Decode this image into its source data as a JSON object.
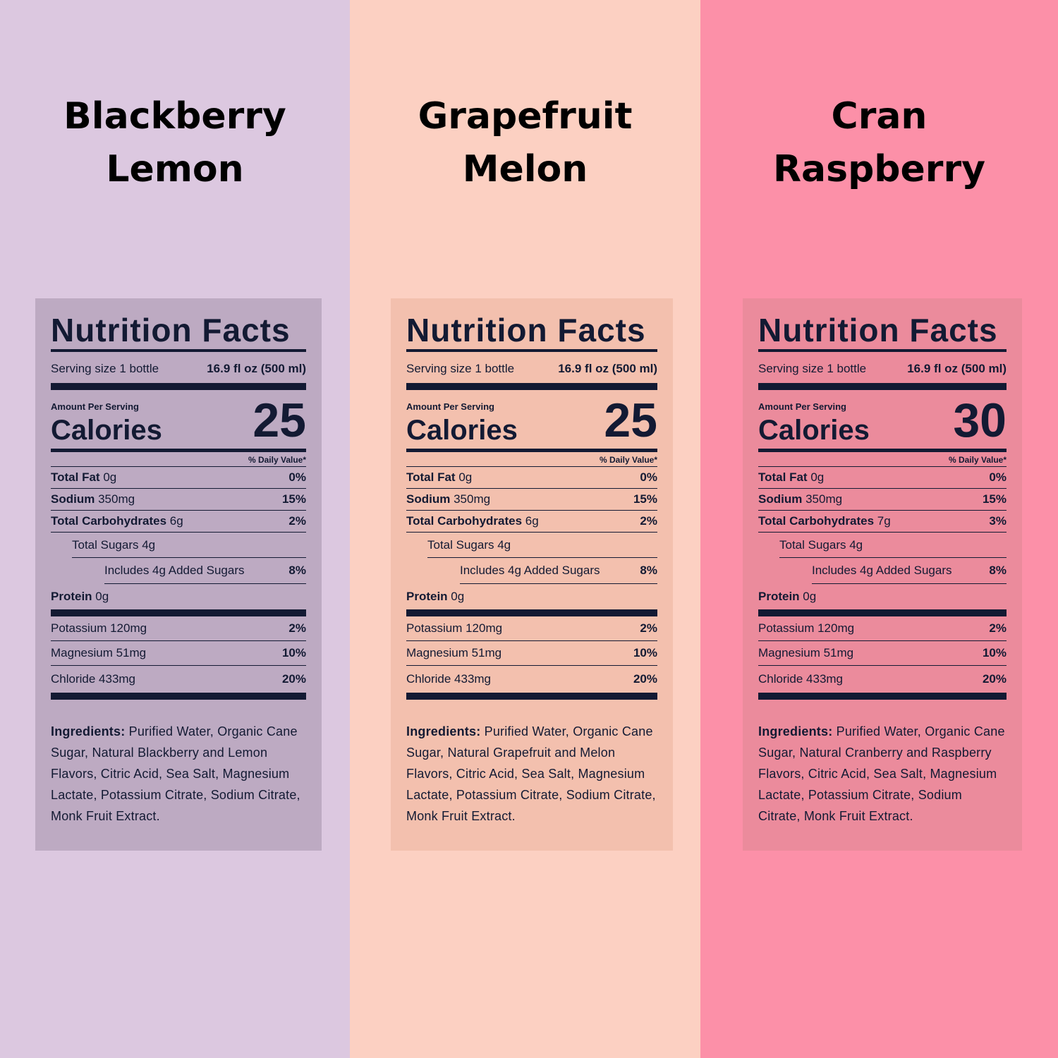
{
  "panels": [
    {
      "title": [
        "Blackberry",
        "Lemon"
      ],
      "label": {
        "heading": "Nutrition Facts",
        "serving_label": "Serving size 1 bottle",
        "serving_size": "16.9 fl oz (500 ml)",
        "amount_per_serving": "Amount Per Serving",
        "calories_label": "Calories",
        "calories": "25",
        "daily_value": "% Daily Value*",
        "nutrients": [
          {
            "name": "Total Fat",
            "amount": "0g",
            "dv": "0%"
          },
          {
            "name": "Sodium",
            "amount": "350mg",
            "dv": "15%"
          },
          {
            "name": "Total Carbohydrates",
            "amount": "6g",
            "dv": "2%"
          },
          {
            "name": "Total Sugars 4g"
          },
          {
            "name": "Includes 4g Added Sugars",
            "dv": "8%"
          },
          {
            "name": "Protein",
            "amount": "0g"
          }
        ],
        "minerals": [
          {
            "name": "Potassium 120mg",
            "dv": "2%"
          },
          {
            "name": "Magnesium 51mg",
            "dv": "10%"
          },
          {
            "name": "Chloride 433mg",
            "dv": "20%"
          }
        ],
        "ingredients": {
          "label": "Ingredients:",
          "text": "Purified Water, Organic Cane Sugar, Natural Blackberry and Lemon Flavors, Citric Acid, Sea Salt, Magnesium Lactate, Potassium Citrate, Sodium Citrate, Monk Fruit Extract."
        }
      }
    },
    {
      "title": [
        "Grapefruit",
        "Melon"
      ],
      "label": {
        "heading": "Nutrition Facts",
        "serving_label": "Serving size 1 bottle",
        "serving_size": "16.9 fl oz (500 ml)",
        "amount_per_serving": "Amount Per Serving",
        "calories_label": "Calories",
        "calories": "25",
        "daily_value": "% Daily Value*",
        "nutrients": [
          {
            "name": "Total Fat",
            "amount": "0g",
            "dv": "0%"
          },
          {
            "name": "Sodium",
            "amount": "350mg",
            "dv": "15%"
          },
          {
            "name": "Total Carbohydrates",
            "amount": "6g",
            "dv": "2%"
          },
          {
            "name": "Total Sugars 4g"
          },
          {
            "name": "Includes 4g Added Sugars",
            "dv": "8%"
          },
          {
            "name": "Protein",
            "amount": "0g"
          }
        ],
        "minerals": [
          {
            "name": "Potassium 120mg",
            "dv": "2%"
          },
          {
            "name": "Magnesium 51mg",
            "dv": "10%"
          },
          {
            "name": "Chloride 433mg",
            "dv": "20%"
          }
        ],
        "ingredients": {
          "label": "Ingredients:",
          "text": "Purified Water, Organic Cane Sugar, Natural Grapefruit and Melon Flavors, Citric Acid, Sea Salt, Magnesium Lactate, Potassium Citrate, Sodium Citrate, Monk Fruit Extract."
        }
      }
    },
    {
      "title": [
        "Cran",
        "Raspberry"
      ],
      "label": {
        "heading": "Nutrition Facts",
        "serving_label": "Serving size 1 bottle",
        "serving_size": "16.9 fl oz (500 ml)",
        "amount_per_serving": "Amount Per Serving",
        "calories_label": "Calories",
        "calories": "30",
        "daily_value": "% Daily Value*",
        "nutrients": [
          {
            "name": "Total Fat",
            "amount": "0g",
            "dv": "0%"
          },
          {
            "name": "Sodium",
            "amount": "350mg",
            "dv": "15%"
          },
          {
            "name": "Total Carbohydrates",
            "amount": "7g",
            "dv": "3%"
          },
          {
            "name": "Total Sugars 4g"
          },
          {
            "name": "Includes 4g Added Sugars",
            "dv": "8%"
          },
          {
            "name": "Protein",
            "amount": "0g"
          }
        ],
        "minerals": [
          {
            "name": "Potassium 120mg",
            "dv": "2%"
          },
          {
            "name": "Magnesium 51mg",
            "dv": "10%"
          },
          {
            "name": "Chloride 433mg",
            "dv": "20%"
          }
        ],
        "ingredients": {
          "label": "Ingredients:",
          "text": "Purified Water, Organic Cane Sugar, Natural Cranberry and Raspberry Flavors, Citric Acid, Sea Salt, Magnesium Lactate, Potassium Citrate, Sodium Citrate, Monk Fruit Extract."
        }
      }
    }
  ]
}
